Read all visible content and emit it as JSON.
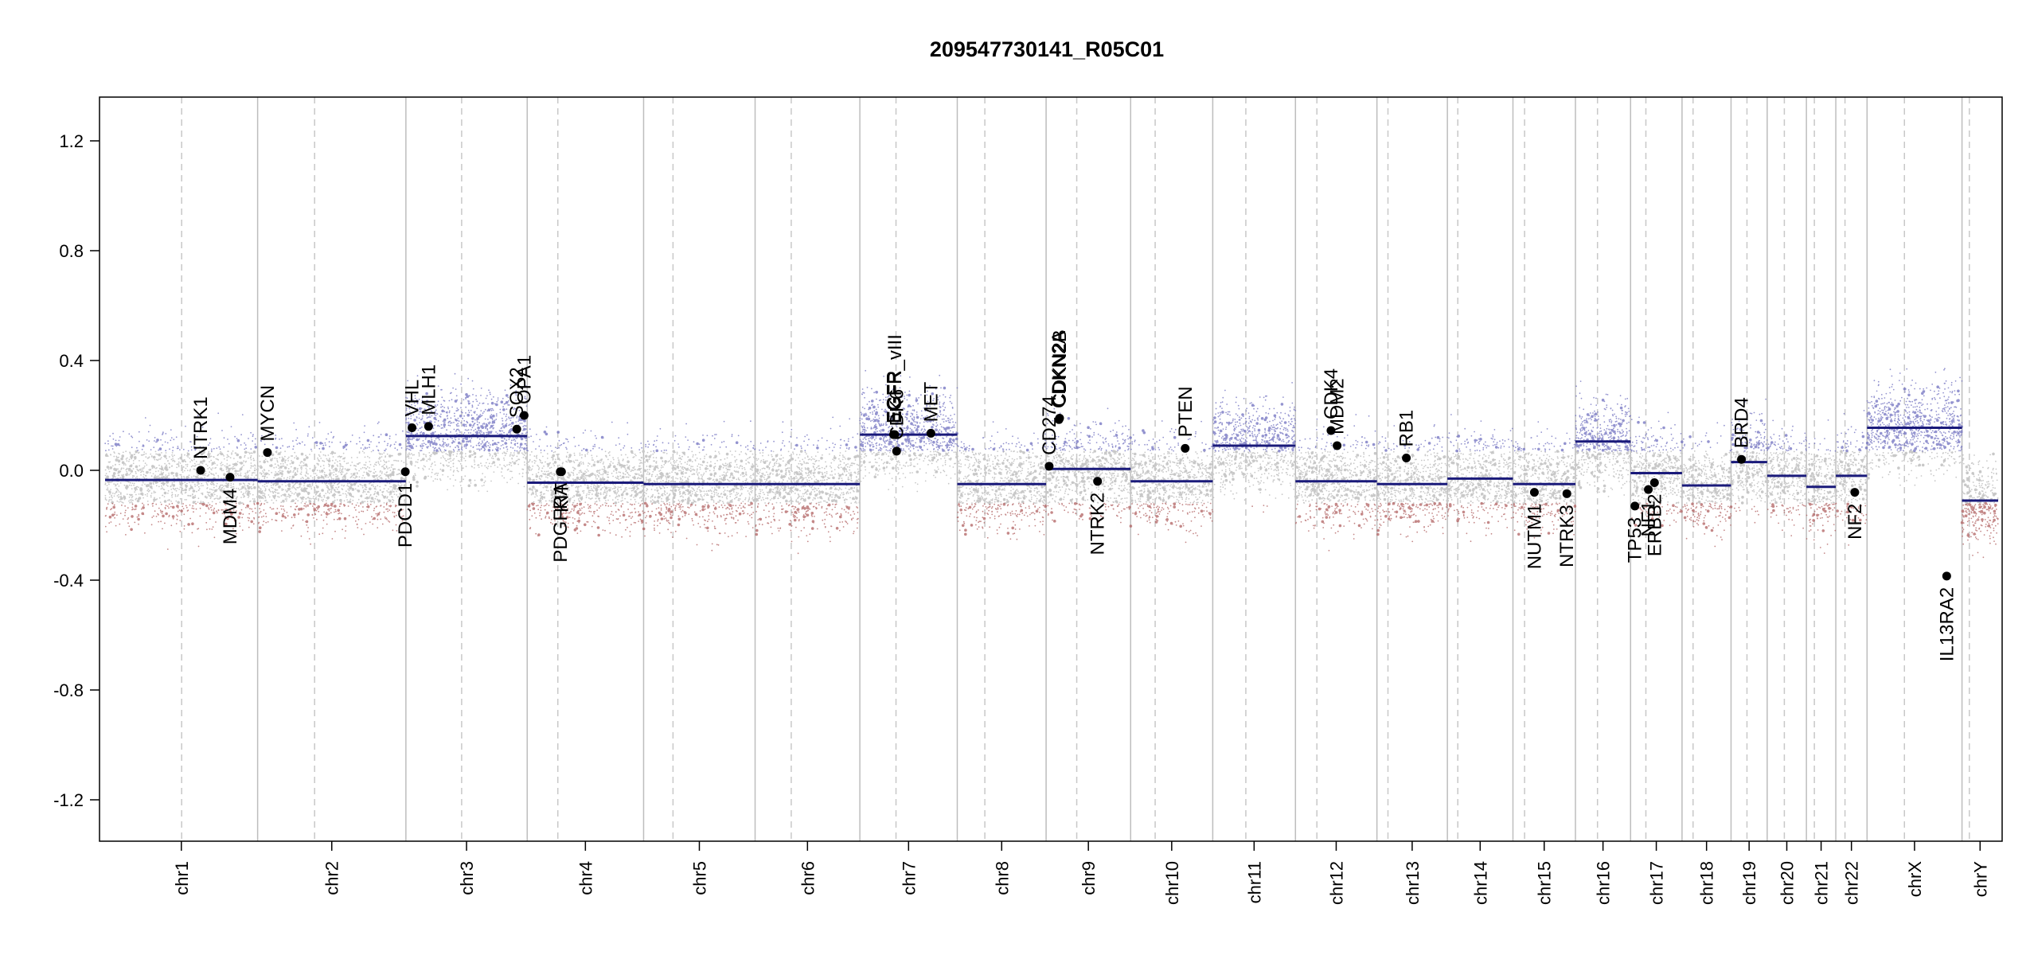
{
  "chart_data": {
    "type": "scatter",
    "title": "209547730141_R05C01",
    "xlabel": "",
    "ylabel": "",
    "ylim": [
      -1.35,
      1.35
    ],
    "y_ticks": [
      "-1.2",
      "-0.8",
      "-0.4",
      "0.0",
      "0.4",
      "0.8",
      "1.2"
    ],
    "y_tick_values": [
      -1.2,
      -0.8,
      -0.4,
      0.0,
      0.4,
      0.8,
      1.2
    ],
    "grid": false,
    "colors": {
      "segment": "#1a1a7a",
      "gain": "#6f6fbf",
      "neutral": "#c8c8c8",
      "loss": "#b06060",
      "gene_point": "#000000",
      "boundary": "#bdbdbd",
      "centromere": "#c8c8c8"
    },
    "chromosomes": [
      {
        "name": "chr1",
        "start": 0.0,
        "end": 249.0,
        "centromere": 125.0
      },
      {
        "name": "chr2",
        "start": 249.0,
        "end": 491.0,
        "centromere": 342.0
      },
      {
        "name": "chr3",
        "start": 491.0,
        "end": 689.0,
        "centromere": 582.0
      },
      {
        "name": "chr4",
        "start": 689.0,
        "end": 879.0,
        "centromere": 739.0
      },
      {
        "name": "chr5",
        "start": 879.0,
        "end": 1061.0,
        "centromere": 927.0
      },
      {
        "name": "chr6",
        "start": 1061.0,
        "end": 1232.0,
        "centromere": 1120.0
      },
      {
        "name": "chr7",
        "start": 1232.0,
        "end": 1391.0,
        "centromere": 1291.0
      },
      {
        "name": "chr8",
        "start": 1391.0,
        "end": 1536.0,
        "centromere": 1436.0
      },
      {
        "name": "chr9",
        "start": 1536.0,
        "end": 1674.0,
        "centromere": 1586.0
      },
      {
        "name": "chr10",
        "start": 1674.0,
        "end": 1808.0,
        "centromere": 1714.0
      },
      {
        "name": "chr11",
        "start": 1808.0,
        "end": 1943.0,
        "centromere": 1862.0
      },
      {
        "name": "chr12",
        "start": 1943.0,
        "end": 2076.0,
        "centromere": 1978.0
      },
      {
        "name": "chr13",
        "start": 2076.0,
        "end": 2191.0,
        "centromere": 2094.0
      },
      {
        "name": "chr14",
        "start": 2191.0,
        "end": 2298.0,
        "centromere": 2208.0
      },
      {
        "name": "chr15",
        "start": 2298.0,
        "end": 2400.0,
        "centromere": 2317.0
      },
      {
        "name": "chr16",
        "start": 2400.0,
        "end": 2490.0,
        "centromere": 2436.0
      },
      {
        "name": "chr17",
        "start": 2490.0,
        "end": 2574.0,
        "centromere": 2515.0
      },
      {
        "name": "chr18",
        "start": 2574.0,
        "end": 2654.0,
        "centromere": 2592.0
      },
      {
        "name": "chr19",
        "start": 2654.0,
        "end": 2713.0,
        "centromere": 2680.0
      },
      {
        "name": "chr20",
        "start": 2713.0,
        "end": 2777.0,
        "centromere": 2741.0
      },
      {
        "name": "chr21",
        "start": 2777.0,
        "end": 2825.0,
        "centromere": 2790.0
      },
      {
        "name": "chr22",
        "start": 2825.0,
        "end": 2876.0,
        "centromere": 2840.0
      },
      {
        "name": "chrX",
        "start": 2876.0,
        "end": 3031.0,
        "centromere": 2937.0
      },
      {
        "name": "chrY",
        "start": 3031.0,
        "end": 3090.0,
        "centromere": 3043.0
      }
    ],
    "xlim": [
      0,
      3090
    ],
    "segments": [
      {
        "chr": "chr1",
        "x0": 0,
        "x1": 249,
        "y": -0.035
      },
      {
        "chr": "chr2",
        "x0": 249,
        "x1": 491,
        "y": -0.04
      },
      {
        "chr": "chr3",
        "x0": 491,
        "x1": 689,
        "y": 0.125
      },
      {
        "chr": "chr4",
        "x0": 689,
        "x1": 879,
        "y": -0.045
      },
      {
        "chr": "chr5",
        "x0": 879,
        "x1": 1061,
        "y": -0.05
      },
      {
        "chr": "chr6",
        "x0": 1061,
        "x1": 1232,
        "y": -0.05
      },
      {
        "chr": "chr7",
        "x0": 1232,
        "x1": 1391,
        "y": 0.13
      },
      {
        "chr": "chr8",
        "x0": 1391,
        "x1": 1536,
        "y": -0.05
      },
      {
        "chr": "chr9",
        "x0": 1536,
        "x1": 1674,
        "y": 0.005
      },
      {
        "chr": "chr10",
        "x0": 1674,
        "x1": 1808,
        "y": -0.04
      },
      {
        "chr": "chr11",
        "x0": 1808,
        "x1": 1943,
        "y": 0.09
      },
      {
        "chr": "chr12",
        "x0": 1943,
        "x1": 2076,
        "y": -0.04
      },
      {
        "chr": "chr13",
        "x0": 2076,
        "x1": 2191,
        "y": -0.05
      },
      {
        "chr": "chr14",
        "x0": 2191,
        "x1": 2298,
        "y": -0.03
      },
      {
        "chr": "chr15",
        "x0": 2298,
        "x1": 2400,
        "y": -0.05
      },
      {
        "chr": "chr16",
        "x0": 2400,
        "x1": 2490,
        "y": 0.105
      },
      {
        "chr": "chr17",
        "x0": 2490,
        "x1": 2574,
        "y": -0.01
      },
      {
        "chr": "chr18",
        "x0": 2574,
        "x1": 2654,
        "y": -0.055
      },
      {
        "chr": "chr19",
        "x0": 2654,
        "x1": 2713,
        "y": 0.03
      },
      {
        "chr": "chr20",
        "x0": 2713,
        "x1": 2777,
        "y": -0.02
      },
      {
        "chr": "chr21",
        "x0": 2777,
        "x1": 2825,
        "y": -0.06
      },
      {
        "chr": "chr22",
        "x0": 2825,
        "x1": 2876,
        "y": -0.02
      },
      {
        "chr": "chrX",
        "x0": 2876,
        "x1": 3031,
        "y": 0.155
      },
      {
        "chr": "chrY",
        "x0": 3031,
        "x1": 3090,
        "y": -0.11
      }
    ],
    "genes": [
      {
        "name": "NTRK1",
        "x": 156,
        "y": 0.0,
        "label_side": "above"
      },
      {
        "name": "MDM4",
        "x": 204,
        "y": -0.025,
        "label_side": "below"
      },
      {
        "name": "MYCN",
        "x": 265,
        "y": 0.065,
        "label_side": "above"
      },
      {
        "name": "PDCD1",
        "x": 490,
        "y": -0.005,
        "label_side": "below"
      },
      {
        "name": "VHL",
        "x": 501,
        "y": 0.155,
        "label_side": "above"
      },
      {
        "name": "MLH1",
        "x": 528,
        "y": 0.16,
        "label_side": "above"
      },
      {
        "name": "SOX2",
        "x": 672,
        "y": 0.15,
        "label_side": "above"
      },
      {
        "name": "OPA1",
        "x": 684,
        "y": 0.2,
        "label_side": "above"
      },
      {
        "name": "PDGFRA",
        "x": 743,
        "y": -0.005,
        "label_side": "below"
      },
      {
        "name": "KIT",
        "x": 745,
        "y": -0.005,
        "label_side": "below"
      },
      {
        "name": "EGFR",
        "x": 1287,
        "y": 0.13,
        "label_side": "above"
      },
      {
        "name": "EGFR_vIII",
        "x": 1289,
        "y": 0.13,
        "label_side": "above"
      },
      {
        "name": "CDK6",
        "x": 1292,
        "y": 0.07,
        "label_side": "above"
      },
      {
        "name": "MET",
        "x": 1348,
        "y": 0.135,
        "label_side": "above"
      },
      {
        "name": "CD274",
        "x": 1541,
        "y": 0.015,
        "label_side": "above"
      },
      {
        "name": "CDKN2A",
        "x": 1557,
        "y": 0.185,
        "label_side": "above"
      },
      {
        "name": "CDKN2B",
        "x": 1558,
        "y": 0.19,
        "label_side": "above"
      },
      {
        "name": "NTRK2",
        "x": 1620,
        "y": -0.04,
        "label_side": "below"
      },
      {
        "name": "PTEN",
        "x": 1763,
        "y": 0.08,
        "label_side": "above"
      },
      {
        "name": "CDK4",
        "x": 2001,
        "y": 0.145,
        "label_side": "above"
      },
      {
        "name": "MDM2",
        "x": 2011,
        "y": 0.09,
        "label_side": "above"
      },
      {
        "name": "RB1",
        "x": 2124,
        "y": 0.045,
        "label_side": "above"
      },
      {
        "name": "NUTM1",
        "x": 2333,
        "y": -0.08,
        "label_side": "below"
      },
      {
        "name": "NTRK3",
        "x": 2386,
        "y": -0.085,
        "label_side": "below"
      },
      {
        "name": "TP53",
        "x": 2497,
        "y": -0.13,
        "label_side": "below"
      },
      {
        "name": "NF1",
        "x": 2519,
        "y": -0.07,
        "label_side": "below"
      },
      {
        "name": "ERBB2",
        "x": 2529,
        "y": -0.045,
        "label_side": "below"
      },
      {
        "name": "BRD4",
        "x": 2671,
        "y": 0.04,
        "label_side": "above"
      },
      {
        "name": "NF2",
        "x": 2856,
        "y": -0.08,
        "label_side": "below"
      },
      {
        "name": "IL13RA2",
        "x": 3006,
        "y": -0.385,
        "label_side": "below"
      }
    ]
  }
}
